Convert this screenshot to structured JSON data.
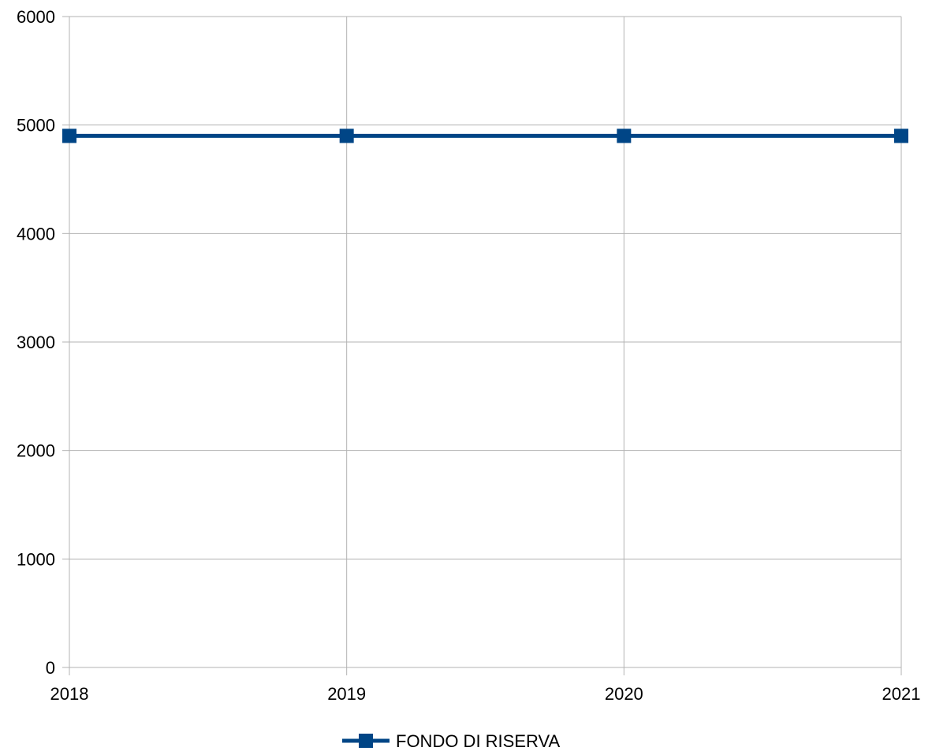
{
  "chart_data": {
    "type": "line",
    "categories": [
      "2018",
      "2019",
      "2020",
      "2021"
    ],
    "series": [
      {
        "name": "FONDO DI RISERVA",
        "values": [
          4900,
          4900,
          4900,
          4900
        ],
        "color": "#004586",
        "marker": "square"
      }
    ],
    "ylim": [
      0,
      6000
    ],
    "yticks": [
      "0",
      "1000",
      "2000",
      "3000",
      "4000",
      "5000",
      "6000"
    ],
    "grid": "horizontal",
    "legend_position": "bottom-center",
    "colors": {
      "grid": "#b3b3b3",
      "axis": "#b3b3b3",
      "text": "#000000"
    }
  }
}
